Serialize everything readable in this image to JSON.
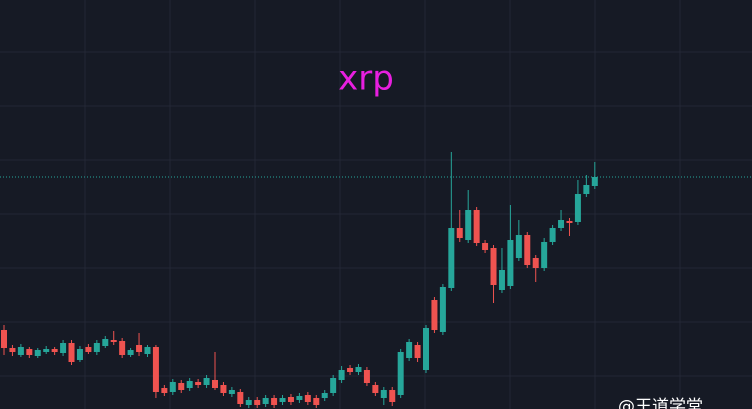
{
  "chart_data": {
    "type": "candlestick",
    "title": "xrp",
    "watermark": "@王道学堂",
    "up_color": "#26a69a",
    "down_color": "#ef5350",
    "title_color": "#e81fe0",
    "ylim": [
      0,
      409
    ],
    "price_line": 232,
    "open": [
      79,
      61,
      54,
      60,
      53,
      57,
      60,
      56,
      66,
      49,
      62,
      57,
      63,
      69,
      68,
      54,
      64,
      55,
      62,
      21,
      17,
      26,
      21,
      27,
      24,
      29,
      24,
      15,
      17,
      4,
      9,
      5,
      11,
      7,
      12,
      9,
      14,
      11,
      11,
      16,
      29,
      41,
      37,
      39,
      24,
      11,
      19,
      14,
      51,
      64,
      39,
      109,
      77,
      121,
      181,
      169,
      199,
      166,
      161,
      119,
      123,
      151,
      174,
      151,
      141,
      167,
      181,
      188,
      187,
      215,
      223
    ],
    "high": [
      84,
      64,
      65,
      62,
      61,
      63,
      62,
      69,
      69,
      63,
      65,
      69,
      73,
      78,
      71,
      61,
      76,
      64,
      64,
      24,
      30,
      29,
      31,
      30,
      34,
      57,
      27,
      22,
      20,
      12,
      12,
      14,
      14,
      14,
      15,
      16,
      17,
      14,
      19,
      34,
      43,
      44,
      45,
      42,
      27,
      22,
      22,
      60,
      70,
      67,
      84,
      112,
      125,
      257,
      199,
      219,
      202,
      169,
      164,
      161,
      204,
      189,
      177,
      154,
      171,
      184,
      199,
      191,
      229,
      234,
      247
    ],
    "low": [
      54,
      53,
      52,
      51,
      51,
      55,
      54,
      53,
      44,
      47,
      55,
      54,
      61,
      64,
      51,
      52,
      53,
      52,
      11,
      13,
      14,
      16,
      18,
      21,
      21,
      19,
      13,
      12,
      2,
      1,
      1,
      2,
      1,
      4,
      4,
      6,
      4,
      1,
      8,
      13,
      26,
      34,
      34,
      23,
      13,
      4,
      3,
      11,
      48,
      47,
      36,
      76,
      74,
      118,
      167,
      166,
      163,
      156,
      106,
      116,
      120,
      148,
      141,
      127,
      138,
      164,
      178,
      173,
      184,
      212,
      220
    ],
    "close": [
      61,
      57,
      62,
      54,
      59,
      60,
      57,
      66,
      47,
      60,
      57,
      66,
      70,
      67,
      54,
      59,
      57,
      62,
      17,
      16,
      27,
      19,
      28,
      24,
      31,
      21,
      16,
      19,
      5,
      9,
      4,
      11,
      4,
      11,
      7,
      13,
      7,
      4,
      16,
      31,
      39,
      37,
      42,
      26,
      16,
      19,
      7,
      57,
      67,
      51,
      81,
      79,
      122,
      181,
      171,
      199,
      166,
      159,
      124,
      139,
      169,
      174,
      144,
      141,
      167,
      181,
      189,
      186,
      215,
      224,
      232
    ]
  }
}
